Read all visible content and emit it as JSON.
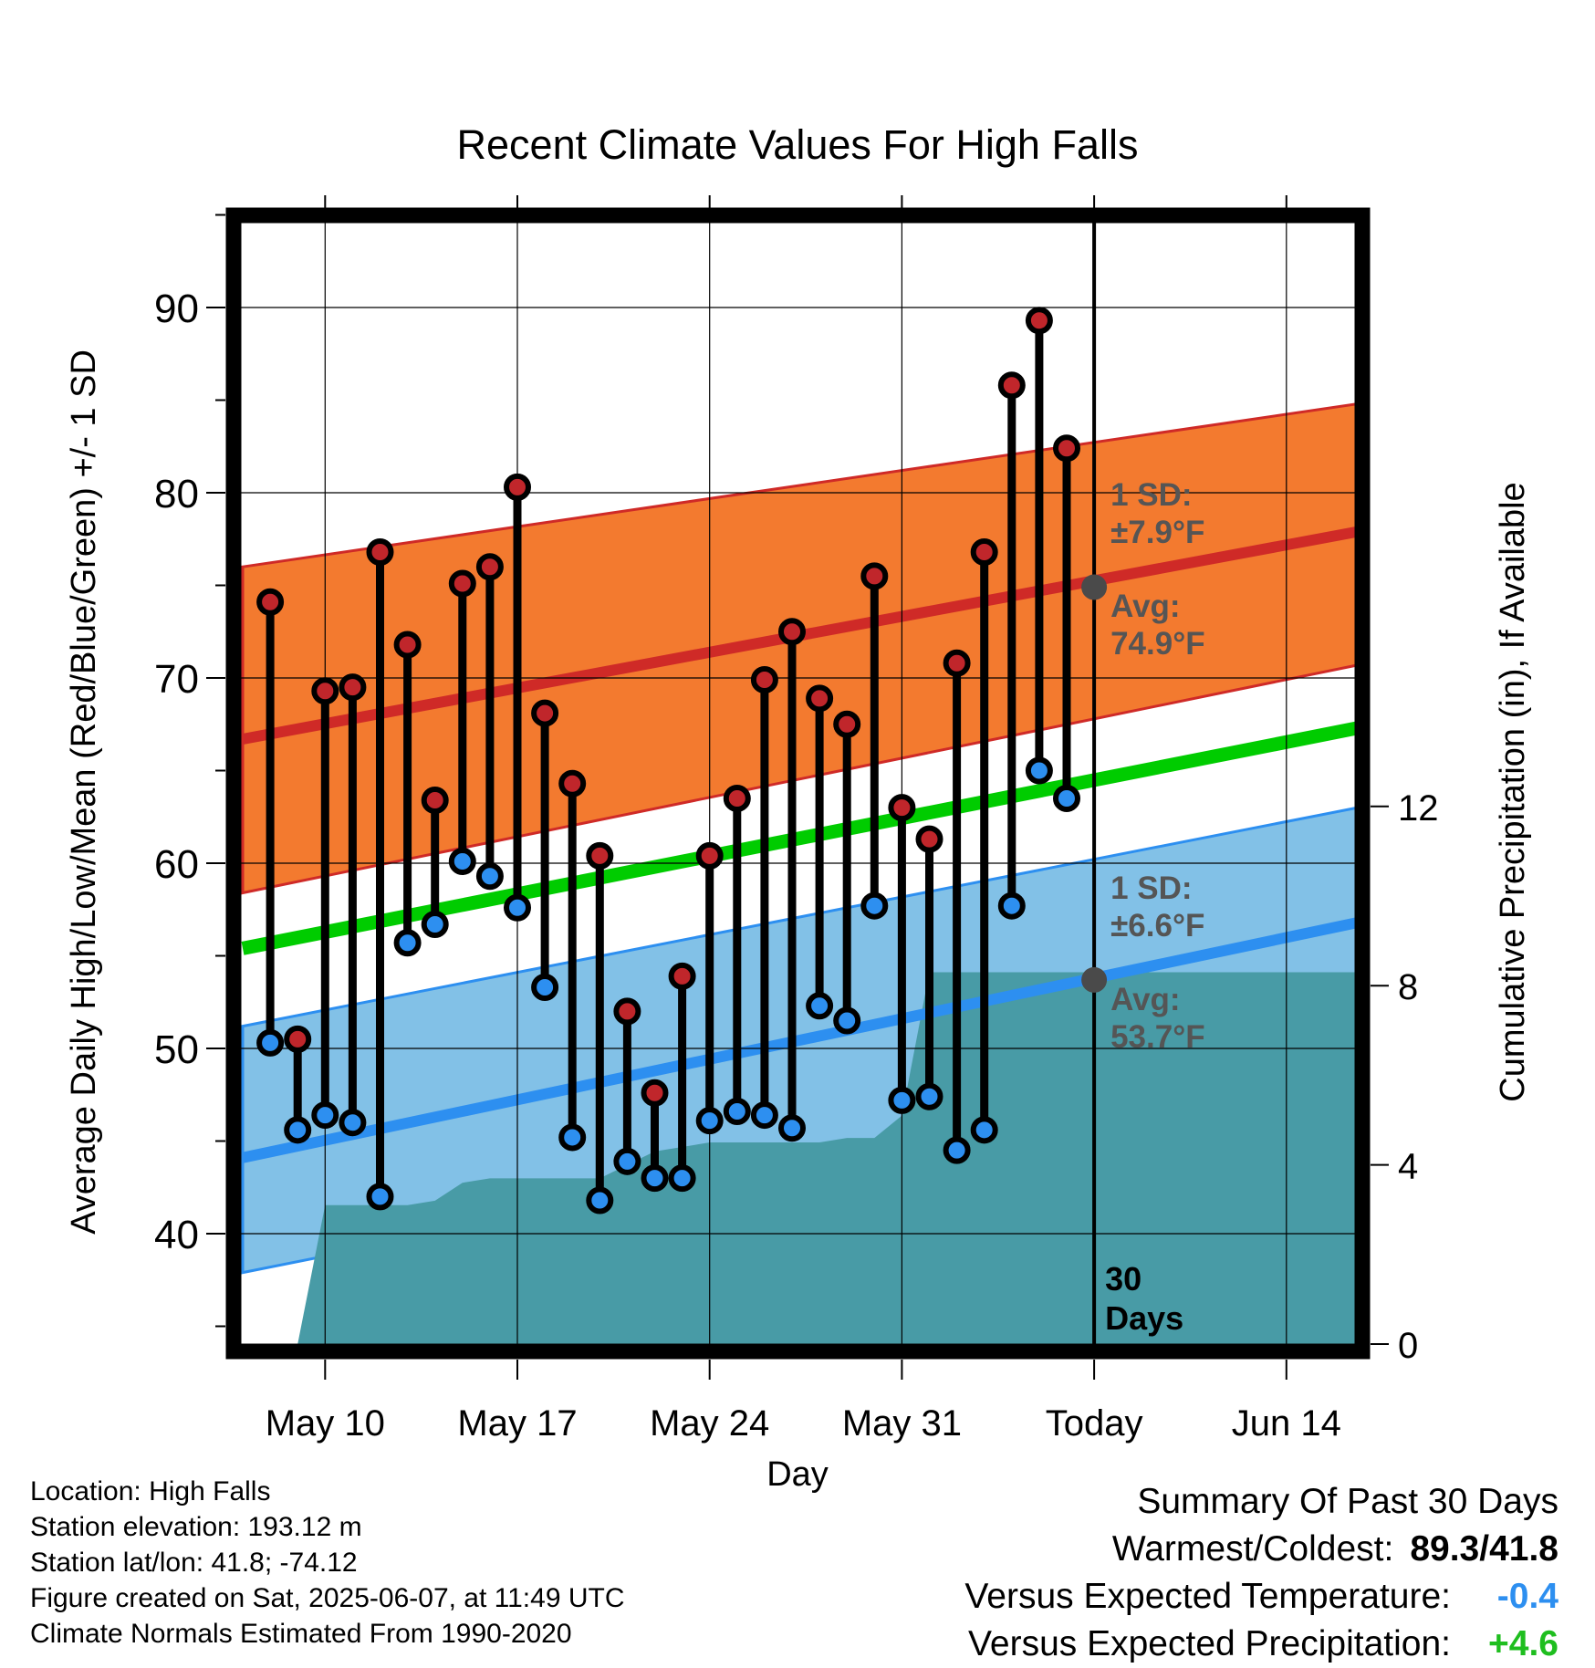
{
  "chart_data": {
    "type": "line",
    "title": "Recent Climate Values For High Falls",
    "xlabel": "Day",
    "ylabel": "Average Daily High/Low/Mean (Red/Blue/Green) +/- 1 SD",
    "y2label": "Cumulative Precipitation (in), If Available",
    "ylim": [
      34,
      95
    ],
    "y2lim": [
      0,
      23.5
    ],
    "yticks": [
      40,
      50,
      60,
      70,
      80,
      90
    ],
    "y2ticks": [
      0,
      4,
      8,
      12
    ],
    "xlim": [
      "May 7",
      "Jun 16"
    ],
    "xticks": [
      "May 10",
      "May 17",
      "May 24",
      "May 31",
      "Today",
      "Jun 14"
    ],
    "grid": true,
    "today": "Jun 7",
    "today_label": "30 Days",
    "days": [
      "May 8",
      "May 9",
      "May 10",
      "May 11",
      "May 12",
      "May 13",
      "May 14",
      "May 15",
      "May 16",
      "May 17",
      "May 18",
      "May 19",
      "May 20",
      "May 21",
      "May 22",
      "May 23",
      "May 24",
      "May 25",
      "May 26",
      "May 27",
      "May 28",
      "May 29",
      "May 30",
      "May 31",
      "Jun 1",
      "Jun 2",
      "Jun 3",
      "Jun 4",
      "Jun 5",
      "Jun 6"
    ],
    "series": [
      {
        "name": "High",
        "color": "#c0262b",
        "values": [
          74.1,
          50.5,
          69.3,
          69.5,
          76.8,
          71.8,
          63.4,
          75.1,
          76.0,
          80.3,
          68.1,
          64.3,
          60.4,
          52.0,
          47.6,
          53.9,
          60.4,
          63.5,
          69.9,
          72.5,
          68.9,
          67.5,
          75.5,
          63.0,
          61.3,
          70.8,
          76.8,
          85.8,
          89.3,
          82.4
        ]
      },
      {
        "name": "Low",
        "color": "#2d8ff0",
        "values": [
          50.3,
          45.6,
          46.4,
          46.0,
          42.0,
          55.7,
          56.7,
          60.1,
          59.3,
          57.6,
          53.3,
          45.2,
          41.8,
          43.9,
          43.0,
          43.0,
          46.1,
          46.6,
          46.4,
          45.7,
          52.3,
          51.5,
          57.7,
          47.2,
          47.4,
          44.5,
          45.6,
          57.7,
          65.0,
          63.5
        ]
      }
    ],
    "normals": {
      "high_avg": [
        66.7,
        77.9
      ],
      "low_avg": [
        44.1,
        56.8
      ],
      "mean_avg": [
        55.4,
        67.3
      ],
      "high_band": [
        [
          58.4,
          76.0
        ],
        [
          70.7,
          84.8
        ]
      ],
      "low_band": [
        [
          37.9,
          51.2
        ],
        [
          49.9,
          63.0
        ]
      ],
      "high_sd_label": "1 SD:",
      "high_sd_value": "±7.9°F",
      "high_avg_label": "Avg:",
      "high_avg_value": "74.9°F",
      "low_sd_label": "1 SD:",
      "low_sd_value": "±6.6°F",
      "low_avg_label": "Avg:",
      "low_avg_value": "53.7°F",
      "today_high_avg": 74.9,
      "today_low_avg": 53.7
    },
    "normal_precip": {
      "days": [
        "May 7",
        "May 9",
        "May 10",
        "May 12",
        "May 13",
        "May 14",
        "May 15",
        "May 16",
        "May 17",
        "May 18",
        "May 19",
        "May 20",
        "May 21",
        "May 22",
        "May 23",
        "May 24",
        "May 25",
        "May 26",
        "May 27",
        "May 28",
        "May 29",
        "May 30",
        "May 31",
        "Jun 1",
        "Jun 2",
        "Jun 3",
        "Jun 4",
        "Jun 5",
        "Jun 6",
        "Jun 7",
        "Jun 16"
      ],
      "values": [
        0.0,
        0.0,
        3.1,
        3.1,
        3.1,
        3.2,
        3.6,
        3.7,
        3.7,
        3.7,
        3.7,
        3.7,
        4.0,
        4.3,
        4.4,
        4.5,
        4.5,
        4.5,
        4.5,
        4.5,
        4.6,
        4.6,
        5.1,
        8.3,
        8.3,
        8.3,
        8.3,
        8.3,
        8.3,
        8.3,
        8.3
      ]
    },
    "colors": {
      "high_band": "#f37a2f",
      "high_line": "#cf2a27",
      "low_band": "#82c1e7",
      "low_line": "#2d8ff0",
      "mean_line": "#00cc00",
      "precip": "#489ba6",
      "annotation": "#555555"
    }
  },
  "info": {
    "location": "Location: High Falls",
    "elevation": "Station elevation: 193.12 m",
    "latlon": "Station lat/lon: 41.8; -74.12",
    "created": "Figure created on Sat, 2025-06-07, at 11:49 UTC",
    "normals": "Climate Normals Estimated From 1990-2020"
  },
  "summary": {
    "title": "Summary Of Past 30 Days",
    "warm_cold_label": "Warmest/Coldest:",
    "warm_cold_value": "89.3/41.8",
    "temp_label": "Versus Expected Temperature:",
    "temp_value": "-0.4",
    "temp_color": "#2d8ff0",
    "precip_label": "Versus Expected Precipitation:",
    "precip_value": "+4.6",
    "precip_color": "#1fbe1f"
  }
}
